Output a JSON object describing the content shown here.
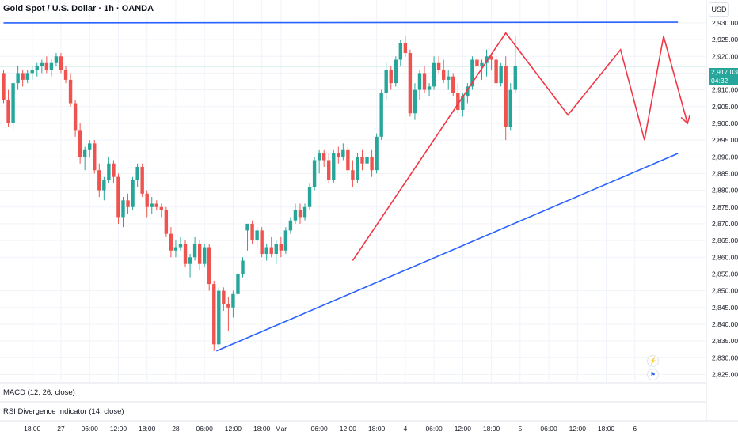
{
  "header": {
    "title": "Gold Spot / U.S. Dollar · 1h · OANDA",
    "currency_button": "USD"
  },
  "price_tag": {
    "price": "2,917.030",
    "countdown": "04:32"
  },
  "indicators": {
    "macd": "MACD (12, 26, close)",
    "rsi": "RSI Divergence Indicator (14, close)"
  },
  "colors": {
    "up": "#26a69a",
    "down": "#ef5350",
    "trendline": "#2962ff",
    "pattern": "#f23645",
    "price_line": "#26a69a"
  },
  "icons": [
    "lightning-icon",
    "us-flag-icon"
  ],
  "chart_data": {
    "type": "candlestick",
    "title": "Gold Spot / U.S. Dollar · 1h · OANDA",
    "ylim": [
      2822.5,
      2934
    ],
    "y_ticks": [
      2825,
      2830,
      2835,
      2840,
      2845,
      2850,
      2855,
      2860,
      2865,
      2870,
      2875,
      2880,
      2885,
      2890,
      2895,
      2900,
      2905,
      2910,
      2915,
      2920,
      2925,
      2930
    ],
    "y_tick_labels": [
      "2,825.000",
      "2,830.000",
      "2,835.000",
      "2,840.000",
      "2,845.000",
      "2,850.000",
      "2,855.000",
      "2,860.000",
      "2,865.000",
      "2,870.000",
      "2,875.000",
      "2,880.000",
      "2,885.000",
      "2,890.000",
      "2,895.000",
      "2,900.000",
      "2,905.000",
      "2,910.000",
      "2,915.000",
      "2,920.000",
      "2,925.000",
      "2,930.000"
    ],
    "x_ticks": [
      {
        "label": "18:00",
        "index": 6
      },
      {
        "label": "27",
        "index": 12
      },
      {
        "label": "06:00",
        "index": 18
      },
      {
        "label": "12:00",
        "index": 24
      },
      {
        "label": "18:00",
        "index": 30
      },
      {
        "label": "28",
        "index": 36
      },
      {
        "label": "06:00",
        "index": 42
      },
      {
        "label": "12:00",
        "index": 48
      },
      {
        "label": "18:00",
        "index": 54
      },
      {
        "label": "Mar",
        "index": 58
      },
      {
        "label": "06:00",
        "index": 66
      },
      {
        "label": "12:00",
        "index": 72
      },
      {
        "label": "18:00",
        "index": 78
      },
      {
        "label": "4",
        "index": 84
      },
      {
        "label": "06:00",
        "index": 90
      },
      {
        "label": "12:00",
        "index": 96
      },
      {
        "label": "18:00",
        "index": 102
      },
      {
        "label": "5",
        "index": 108
      },
      {
        "label": "06:00",
        "index": 114
      },
      {
        "label": "12:00",
        "index": 120
      },
      {
        "label": "18:00",
        "index": 126
      },
      {
        "label": "6",
        "index": 132
      }
    ],
    "last_price": 2917.03,
    "ohlc": [
      [
        2915,
        2916,
        2906,
        2907
      ],
      [
        2907,
        2910,
        2899,
        2900
      ],
      [
        2900,
        2913,
        2898,
        2912
      ],
      [
        2912,
        2917,
        2910,
        2915
      ],
      [
        2915,
        2916,
        2911,
        2913
      ],
      [
        2913,
        2916,
        2912,
        2915
      ],
      [
        2915,
        2917,
        2913,
        2916
      ],
      [
        2916,
        2918,
        2914,
        2917
      ],
      [
        2917,
        2919,
        2915,
        2918
      ],
      [
        2918,
        2920,
        2915,
        2916
      ],
      [
        2916,
        2919,
        2914,
        2918
      ],
      [
        2918,
        2921,
        2917,
        2920
      ],
      [
        2920,
        2921,
        2915,
        2916
      ],
      [
        2916,
        2917,
        2912,
        2913
      ],
      [
        2913,
        2915,
        2905,
        2906
      ],
      [
        2906,
        2907,
        2896,
        2898
      ],
      [
        2898,
        2900,
        2888,
        2890
      ],
      [
        2890,
        2893,
        2886,
        2892
      ],
      [
        2892,
        2895,
        2890,
        2894
      ],
      [
        2894,
        2895,
        2885,
        2886
      ],
      [
        2886,
        2888,
        2878,
        2880
      ],
      [
        2880,
        2884,
        2877,
        2883
      ],
      [
        2883,
        2890,
        2882,
        2888
      ],
      [
        2888,
        2889,
        2882,
        2884
      ],
      [
        2884,
        2885,
        2870,
        2872
      ],
      [
        2872,
        2878,
        2869,
        2877
      ],
      [
        2877,
        2879,
        2873,
        2875
      ],
      [
        2875,
        2884,
        2874,
        2883
      ],
      [
        2883,
        2888,
        2881,
        2887
      ],
      [
        2887,
        2888,
        2878,
        2879
      ],
      [
        2879,
        2880,
        2872,
        2875
      ],
      [
        2875,
        2878,
        2873,
        2876
      ],
      [
        2876,
        2877,
        2874,
        2875
      ],
      [
        2875,
        2876,
        2872,
        2874
      ],
      [
        2874,
        2875,
        2866,
        2867
      ],
      [
        2867,
        2869,
        2860,
        2862
      ],
      [
        2862,
        2865,
        2860,
        2863
      ],
      [
        2863,
        2866,
        2862,
        2864
      ],
      [
        2864,
        2865,
        2857,
        2858
      ],
      [
        2858,
        2861,
        2854,
        2860
      ],
      [
        2860,
        2866,
        2859,
        2864
      ],
      [
        2864,
        2865,
        2856,
        2858
      ],
      [
        2858,
        2864,
        2857,
        2863
      ],
      [
        2863,
        2864,
        2850,
        2852
      ],
      [
        2852,
        2853,
        2832,
        2834
      ],
      [
        2834,
        2851,
        2833,
        2850
      ],
      [
        2850,
        2851,
        2844,
        2846
      ],
      [
        2846,
        2848,
        2838,
        2845
      ],
      [
        2845,
        2850,
        2842,
        2849
      ],
      [
        2849,
        2856,
        2848,
        2855
      ],
      [
        2855,
        2860,
        2854,
        2859
      ],
      [
        2868,
        2870,
        2862,
        2870
      ],
      [
        2870,
        2871,
        2864,
        2865
      ],
      [
        2865,
        2869,
        2863,
        2868
      ],
      [
        2868,
        2869,
        2860,
        2861
      ],
      [
        2861,
        2864,
        2859,
        2863
      ],
      [
        2863,
        2866,
        2860,
        2861
      ],
      [
        2861,
        2865,
        2858,
        2864
      ],
      [
        2864,
        2866,
        2860,
        2862
      ],
      [
        2862,
        2869,
        2861,
        2868
      ],
      [
        2868,
        2872,
        2867,
        2871
      ],
      [
        2871,
        2876,
        2870,
        2874
      ],
      [
        2874,
        2876,
        2870,
        2872
      ],
      [
        2872,
        2876,
        2871,
        2875
      ],
      [
        2875,
        2882,
        2874,
        2881
      ],
      [
        2881,
        2890,
        2880,
        2889
      ],
      [
        2889,
        2892,
        2885,
        2891
      ],
      [
        2891,
        2892,
        2887,
        2889
      ],
      [
        2889,
        2891,
        2882,
        2883
      ],
      [
        2883,
        2892,
        2882,
        2891
      ],
      [
        2891,
        2893,
        2888,
        2890
      ],
      [
        2890,
        2894,
        2889,
        2892
      ],
      [
        2892,
        2893,
        2885,
        2886
      ],
      [
        2886,
        2889,
        2881,
        2883
      ],
      [
        2883,
        2891,
        2882,
        2890
      ],
      [
        2890,
        2892,
        2886,
        2888
      ],
      [
        2888,
        2891,
        2887,
        2890
      ],
      [
        2890,
        2892,
        2884,
        2886
      ],
      [
        2886,
        2897,
        2885,
        2896
      ],
      [
        2896,
        2910,
        2895,
        2909
      ],
      [
        2909,
        2918,
        2907,
        2916
      ],
      [
        2916,
        2917,
        2910,
        2912
      ],
      [
        2912,
        2920,
        2911,
        2919
      ],
      [
        2919,
        2925,
        2917,
        2924
      ],
      [
        2924,
        2926,
        2920,
        2921
      ],
      [
        2921,
        2922,
        2902,
        2903
      ],
      [
        2903,
        2912,
        2901,
        2910
      ],
      [
        2910,
        2916,
        2907,
        2915
      ],
      [
        2915,
        2917,
        2909,
        2910
      ],
      [
        2910,
        2912,
        2908,
        2911
      ],
      [
        2911,
        2920,
        2910,
        2918
      ],
      [
        2918,
        2920,
        2915,
        2916
      ],
      [
        2916,
        2919,
        2912,
        2913
      ],
      [
        2913,
        2916,
        2910,
        2914
      ],
      [
        2914,
        2915,
        2908,
        2909
      ],
      [
        2909,
        2912,
        2903,
        2904
      ],
      [
        2904,
        2909,
        2902,
        2908
      ],
      [
        2908,
        2912,
        2906,
        2911
      ],
      [
        2911,
        2920,
        2910,
        2919
      ],
      [
        2919,
        2922,
        2915,
        2917
      ],
      [
        2917,
        2919,
        2913,
        2918
      ],
      [
        2918,
        2922,
        2914,
        2920
      ],
      [
        2920,
        2921,
        2916,
        2919
      ],
      [
        2919,
        2920,
        2911,
        2912
      ],
      [
        2912,
        2918,
        2911,
        2917
      ],
      [
        2917,
        2920,
        2895,
        2899
      ],
      [
        2899,
        2912,
        2898,
        2910
      ],
      [
        2910,
        2926,
        2909,
        2917
      ]
    ],
    "trendlines": [
      {
        "name": "resistance",
        "points": [
          [
            0,
            2930
          ],
          [
            141,
            2930.2
          ]
        ]
      },
      {
        "name": "support",
        "points": [
          [
            44.5,
            2832
          ],
          [
            141,
            2891
          ]
        ]
      }
    ],
    "pattern_path": [
      [
        73,
        2859
      ],
      [
        105,
        2927
      ],
      [
        118,
        2902.5
      ],
      [
        129,
        2922
      ],
      [
        134,
        2895
      ],
      [
        138,
        2926
      ],
      [
        143,
        2900
      ]
    ]
  }
}
